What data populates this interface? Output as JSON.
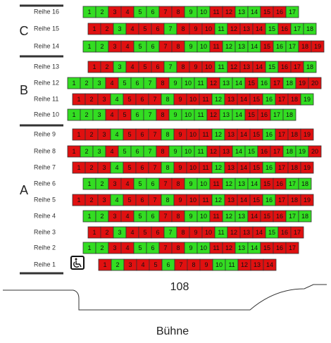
{
  "sections": [
    {
      "label": "C"
    },
    {
      "label": "B"
    },
    {
      "label": "A"
    }
  ],
  "palette": {
    "g": "#33dd22",
    "r": "#e01010"
  },
  "rows": [
    {
      "label": "Reihe 16",
      "seats": [
        1,
        2,
        3,
        4,
        5,
        6,
        7,
        8,
        9,
        10,
        11,
        12,
        13,
        14,
        15,
        16,
        17
      ],
      "colors": "ggrrggrrggrrggrrg"
    },
    {
      "label": "Reihe 15",
      "seats": [
        1,
        2,
        3,
        4,
        5,
        6,
        7,
        8,
        9,
        10,
        11,
        12,
        13,
        14,
        15,
        16,
        17,
        18
      ],
      "colors": "rrgrrrgrrrgrrrgrgg"
    },
    {
      "label": "Reihe 14",
      "seats": [
        1,
        2,
        3,
        4,
        5,
        6,
        7,
        8,
        9,
        10,
        11,
        12,
        13,
        14,
        15,
        16,
        17,
        18,
        19
      ],
      "colors": "ggrrggrrggrgggrggrr"
    },
    {
      "label": "Reihe 13",
      "seats": [
        1,
        2,
        3,
        4,
        5,
        6,
        7,
        8,
        9,
        10,
        11,
        12,
        13,
        14,
        15,
        16,
        17,
        18
      ],
      "colors": "rrgrrrgrrrgrrrgrrg"
    },
    {
      "label": "Reihe 12",
      "seats": [
        1,
        2,
        3,
        4,
        5,
        6,
        7,
        8,
        9,
        10,
        11,
        12,
        13,
        14,
        15,
        16,
        17,
        18,
        19,
        20
      ],
      "colors": "gggrgggrgggrggrgrgrr"
    },
    {
      "label": "Reihe 11",
      "seats": [
        1,
        2,
        3,
        4,
        5,
        6,
        7,
        8,
        9,
        10,
        11,
        12,
        13,
        14,
        15,
        16,
        17,
        18,
        19
      ],
      "colors": "rrrgrrrgrrrgrrrgrrg"
    },
    {
      "label": "Reihe 10",
      "seats": [
        1,
        2,
        3,
        4,
        5,
        6,
        7,
        8,
        9,
        10,
        11,
        12,
        13,
        14,
        15,
        16,
        17,
        18
      ],
      "colors": "gggrrggrgggrggrrgg"
    },
    {
      "label": "Reihe 9",
      "seats": [
        1,
        2,
        3,
        4,
        5,
        6,
        7,
        8,
        9,
        10,
        11,
        12,
        13,
        14,
        15,
        16,
        17,
        18,
        19
      ],
      "colors": "rrrgrrrgrrrgrrrgrrr"
    },
    {
      "label": "Reihe 8",
      "seats": [
        1,
        2,
        3,
        4,
        5,
        6,
        7,
        8,
        9,
        10,
        11,
        12,
        13,
        14,
        15,
        16,
        17,
        18,
        19,
        20
      ],
      "colors": "rggrgggrgggrrggrrggr"
    },
    {
      "label": "Reihe 7",
      "seats": [
        1,
        2,
        3,
        4,
        5,
        6,
        7,
        8,
        9,
        10,
        11,
        12,
        13,
        14,
        15,
        16,
        17,
        18,
        19
      ],
      "colors": "rrrgrrrgrrrgrrrgrrr"
    },
    {
      "label": "Reihe 6",
      "seats": [
        1,
        2,
        3,
        4,
        5,
        6,
        7,
        8,
        9,
        10,
        11,
        12,
        13,
        14,
        15,
        16,
        17,
        18
      ],
      "colors": "ggrrggrrggrgggrrgg"
    },
    {
      "label": "Reihe 5",
      "seats": [
        1,
        2,
        3,
        4,
        5,
        6,
        7,
        8,
        9,
        10,
        11,
        12,
        13,
        14,
        15,
        16,
        17,
        18,
        19
      ],
      "colors": "rrrgrrrgrrrgrrrgrrr"
    },
    {
      "label": "Reihe 4",
      "seats": [
        1,
        2,
        3,
        4,
        5,
        6,
        7,
        8,
        9,
        10,
        11,
        12,
        13,
        14,
        15,
        16,
        17,
        18
      ],
      "colors": "ggrrggrrggrggrrrgg"
    },
    {
      "label": "Reihe 3",
      "seats": [
        1,
        2,
        3,
        4,
        5,
        6,
        7,
        8,
        9,
        10,
        11,
        12,
        13,
        14,
        15,
        16,
        17
      ],
      "colors": "rrgrrrgrrrgrrrgrr"
    },
    {
      "label": "Reihe 2",
      "seats": [
        1,
        2,
        3,
        4,
        5,
        6,
        7,
        8,
        9,
        10,
        11,
        12,
        13,
        14,
        15,
        16,
        17
      ],
      "colors": "ggrrggrrggrrggrrr"
    },
    {
      "label": "Reihe 1",
      "seats": [
        1,
        2,
        3,
        4,
        5,
        6,
        7,
        8,
        9,
        10,
        11,
        12,
        13,
        14
      ],
      "colors": "rgrrrgrrrggrrr"
    }
  ],
  "block_number": "108",
  "stage": "Bühne"
}
